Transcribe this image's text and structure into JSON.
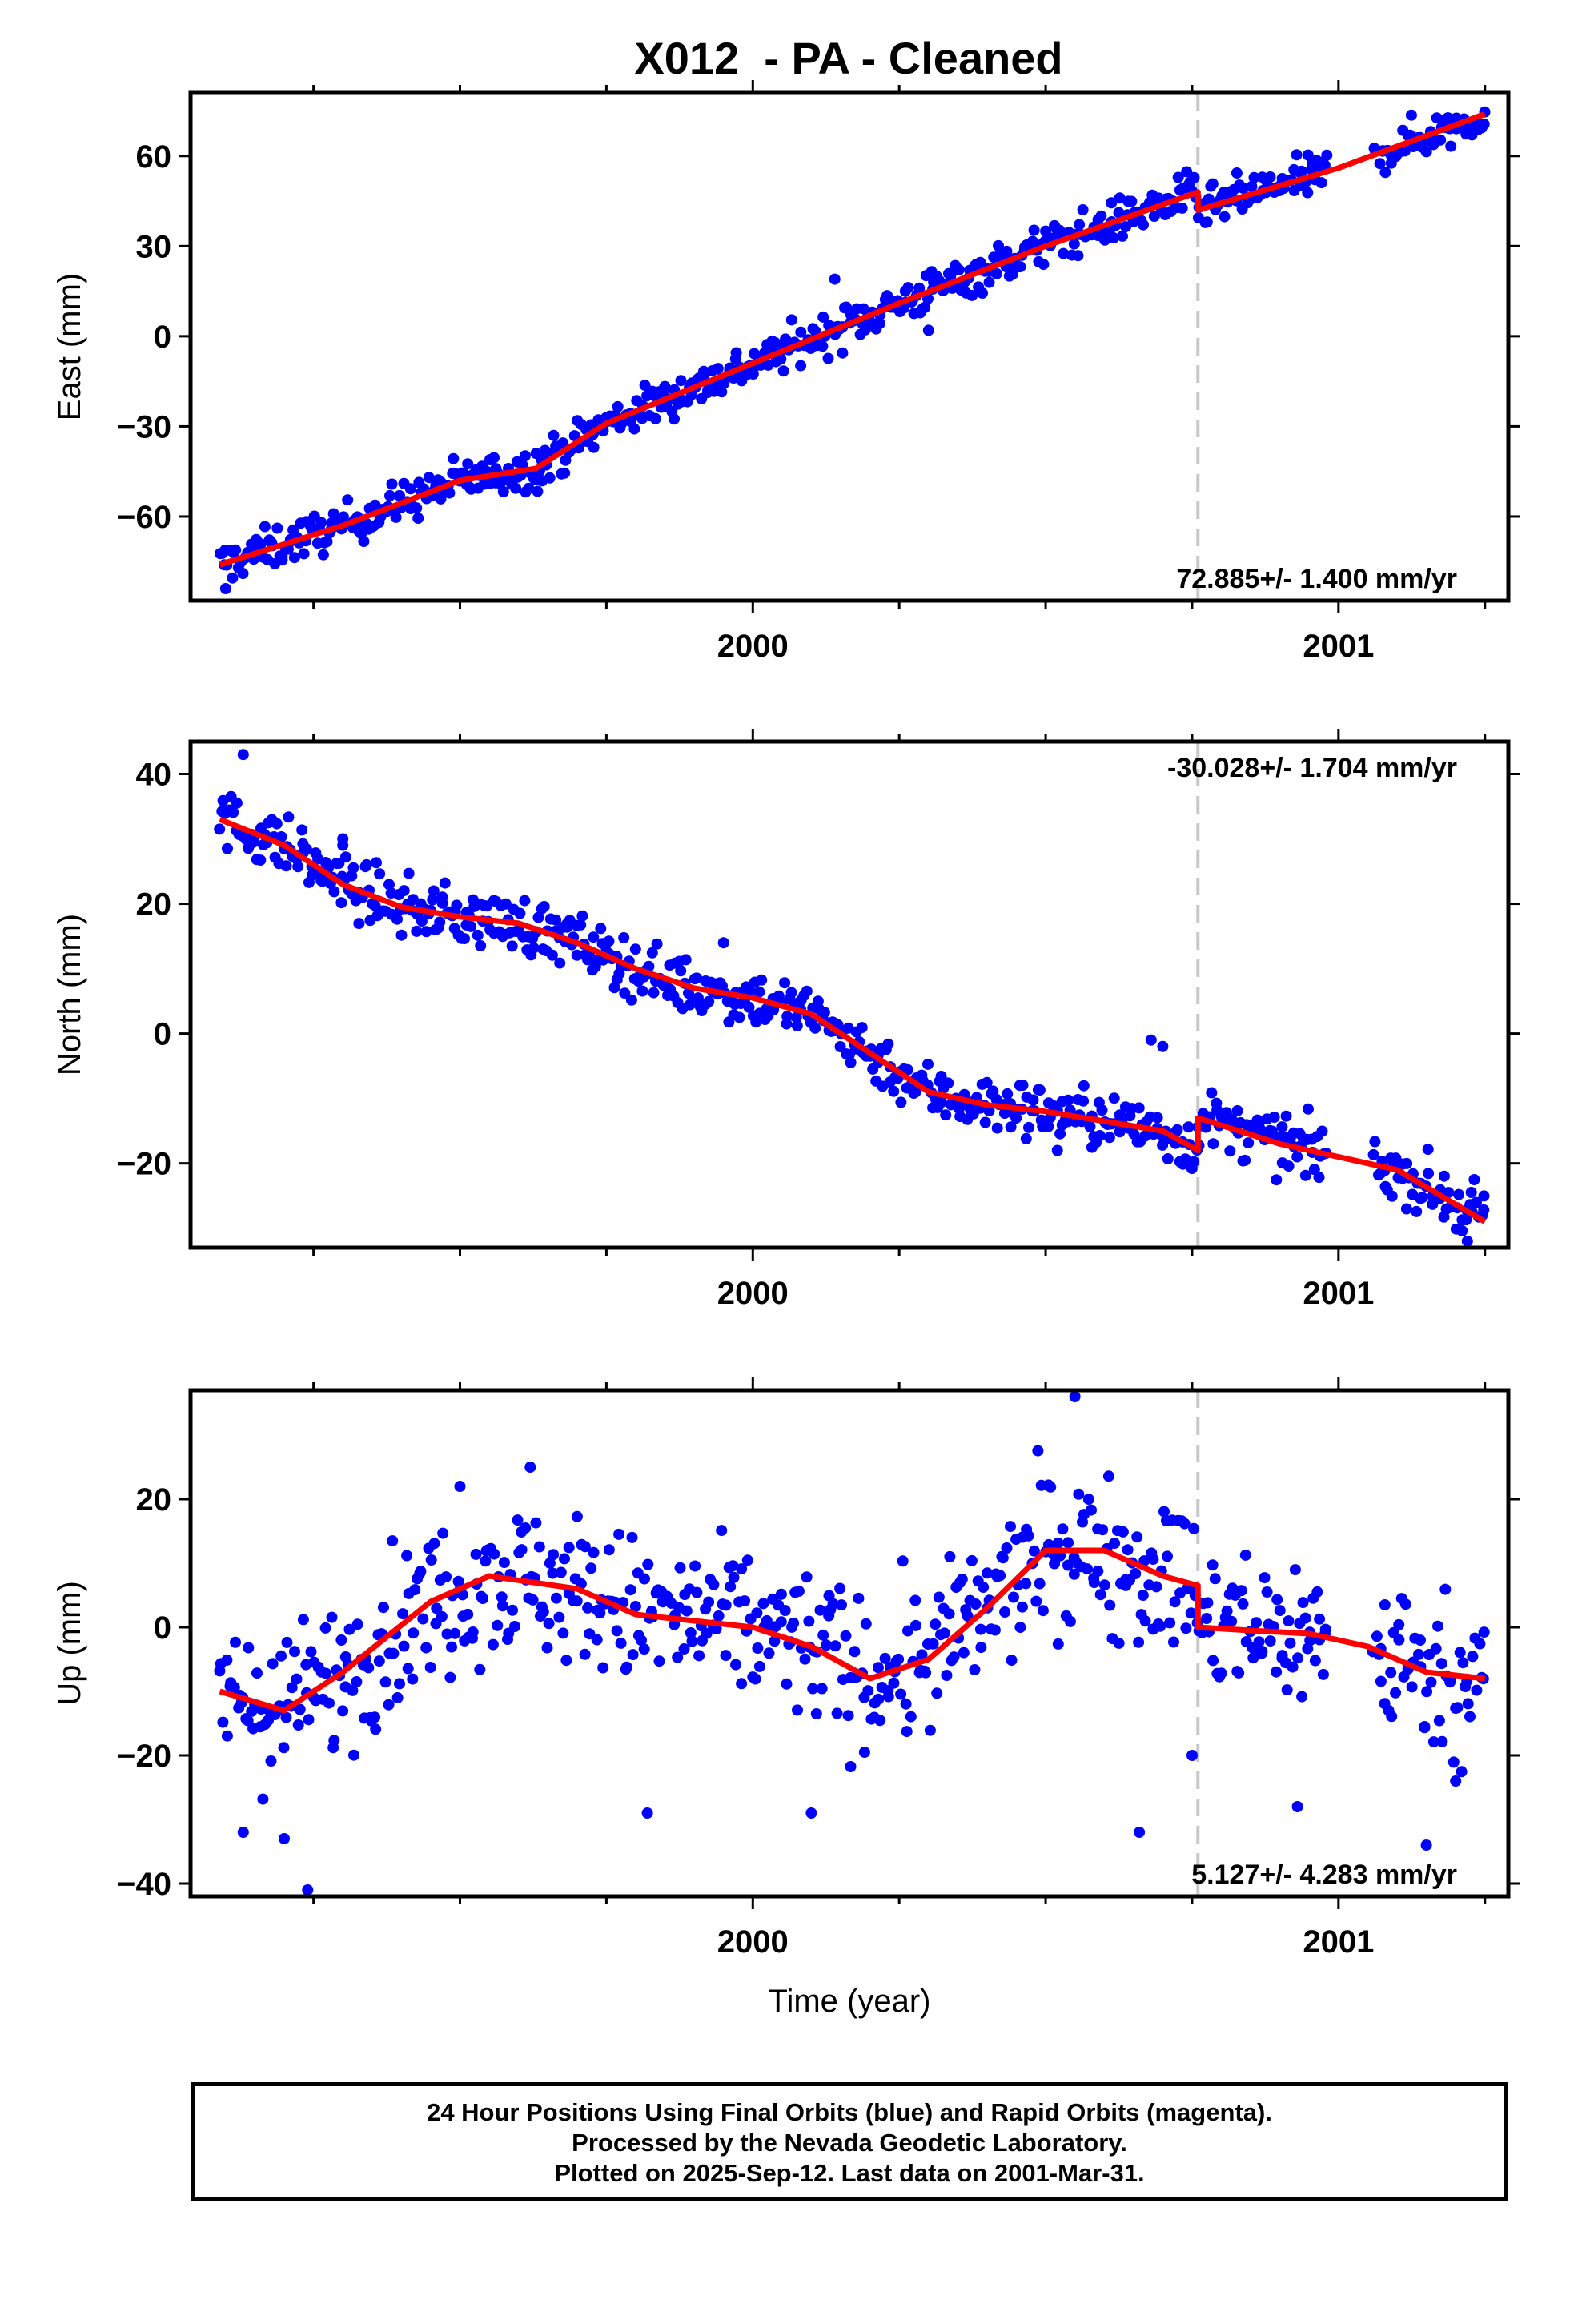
{
  "title": "X012  - PA - Cleaned",
  "colors": {
    "data": "#0000ff",
    "model": "#ff0000",
    "break": "#c8c8c8",
    "frame": "#000000"
  },
  "footer": {
    "line1": "24 Hour Positions Using Final Orbits (blue) and Rapid Orbits (magenta).",
    "line2": "Processed by the Nevada Geodetic Laboratory.",
    "line3": "Plotted on 2025-Sep-12. Last data on 2001-Mar-31."
  },
  "chart_data": [
    {
      "type": "scatter",
      "ylabel": "East (mm)",
      "xlim": [
        1999.04,
        2001.29
      ],
      "ylim": [
        -88,
        81
      ],
      "yticks": [
        -60,
        -30,
        0,
        30,
        60
      ],
      "xticks": [
        2000,
        2001
      ],
      "rate_text": "72.885+/- 1.400 mm/yr",
      "rate_position": "bottom-right",
      "step_epoch": 2000.76,
      "model": {
        "x": [
          1999.09,
          1999.3,
          1999.5,
          1999.63,
          1999.75,
          2000.0,
          2000.25,
          2000.5,
          2000.76,
          2000.76,
          2001.0,
          2001.25
        ],
        "y": [
          -76,
          -63,
          -48,
          -44,
          -29,
          -9,
          11,
          30,
          48,
          42,
          56,
          74
        ]
      },
      "noise": 3.5,
      "outliers": {
        "x": [
          1999.1,
          1999.63,
          2000.14,
          2000.5,
          2000.3
        ],
        "y": [
          -84,
          -39,
          19,
          35,
          2
        ]
      }
    },
    {
      "type": "scatter",
      "ylabel": "North (mm)",
      "xlim": [
        1999.04,
        2001.29
      ],
      "ylim": [
        -33,
        45
      ],
      "yticks": [
        -20,
        0,
        20,
        40
      ],
      "xticks": [
        2000,
        2001
      ],
      "rate_text": "-30.028+/- 1.704 mm/yr",
      "rate_position": "top-right",
      "step_epoch": 2000.76,
      "model": {
        "x": [
          1999.09,
          1999.2,
          1999.3,
          1999.4,
          1999.5,
          1999.6,
          1999.7,
          1999.8,
          1999.9,
          2000.0,
          2000.1,
          2000.2,
          2000.3,
          2000.4,
          2000.5,
          2000.6,
          2000.7,
          2000.76,
          2000.76,
          2000.9,
          2001.0,
          2001.1,
          2001.25
        ],
        "y": [
          33,
          29,
          23,
          19.5,
          18,
          17,
          14,
          10,
          7,
          5.5,
          3,
          -3,
          -9,
          -11,
          -12,
          -13.5,
          -15,
          -18,
          -13,
          -17,
          -19,
          -21,
          -29
        ]
      },
      "noise": 2.2,
      "outliers": {
        "x": [
          1999.13,
          1999.3,
          1999.3,
          1999.95,
          2000.68,
          2000.7,
          2000.52,
          2001.22
        ],
        "y": [
          43,
          30,
          29,
          14,
          -1,
          -2,
          -18,
          -32
        ]
      }
    },
    {
      "type": "scatter",
      "ylabel": "Up (mm)",
      "xlabel": "Time (year)",
      "xlim": [
        1999.04,
        2001.29
      ],
      "ylim": [
        -42,
        37
      ],
      "yticks": [
        -40,
        -20,
        0,
        20
      ],
      "xticks": [
        2000,
        2001
      ],
      "rate_text": "5.127+/- 4.283 mm/yr",
      "rate_position": "bottom-right",
      "step_epoch": 2000.76,
      "model": {
        "x": [
          1999.09,
          1999.2,
          1999.3,
          1999.45,
          1999.55,
          1999.7,
          1999.8,
          1999.9,
          2000.0,
          2000.1,
          2000.2,
          2000.3,
          2000.4,
          2000.5,
          2000.6,
          2000.7,
          2000.76,
          2000.76,
          2000.85,
          2000.95,
          2001.05,
          2001.15,
          2001.25
        ],
        "y": [
          -10,
          -13,
          -7,
          4,
          8,
          6,
          2,
          1,
          0,
          -3,
          -8,
          -5,
          3,
          12,
          12,
          8,
          6.5,
          0,
          -0.5,
          -1,
          -3,
          -7,
          -8
        ]
      },
      "noise": 6,
      "outliers": {
        "x": [
          1999.13,
          1999.2,
          1999.24,
          1999.5,
          1999.62,
          2000.1,
          2000.55,
          2000.66,
          2000.75,
          2000.93,
          2001.15,
          2001.2,
          1999.82
        ],
        "y": [
          -32,
          -33,
          -41,
          22,
          25,
          -29,
          36,
          -32,
          -20,
          -28,
          -34,
          -24,
          -29
        ]
      }
    }
  ]
}
